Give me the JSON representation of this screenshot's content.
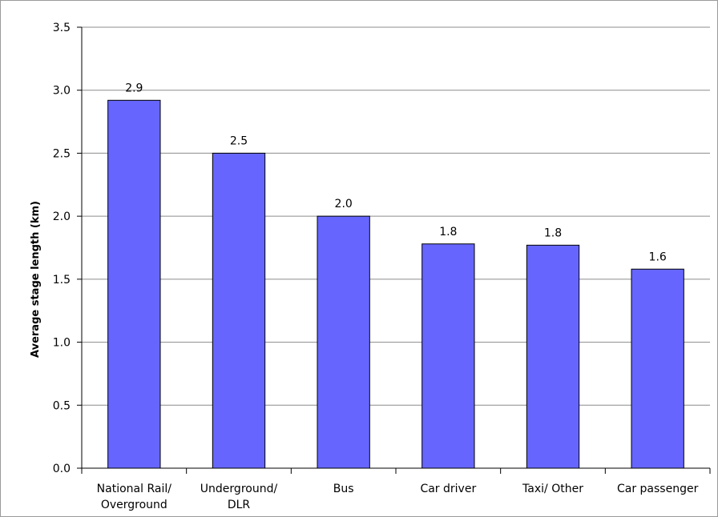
{
  "chart_data": {
    "type": "bar",
    "title": "",
    "xlabel": "",
    "ylabel": "Average stage length (km)",
    "ylim": [
      0,
      3.5
    ],
    "yticks": [
      "0.0",
      "0.5",
      "1.0",
      "1.5",
      "2.0",
      "2.5",
      "3.0",
      "3.5"
    ],
    "categories": [
      [
        "National Rail/",
        "Overground"
      ],
      [
        "Underground/",
        "DLR"
      ],
      [
        "Bus"
      ],
      [
        "Car driver"
      ],
      [
        "Taxi/ Other"
      ],
      [
        "Car passenger"
      ]
    ],
    "values": [
      2.92,
      2.5,
      2.0,
      1.78,
      1.77,
      1.58
    ],
    "data_labels": [
      "2.9",
      "2.5",
      "2.0",
      "1.8",
      "1.8",
      "1.6"
    ],
    "grid": true,
    "legend": "none",
    "colors": {
      "bar": "#6666ff",
      "bar_stroke": "#000000",
      "grid": "#8c8c8c",
      "axis": "#000000"
    }
  }
}
